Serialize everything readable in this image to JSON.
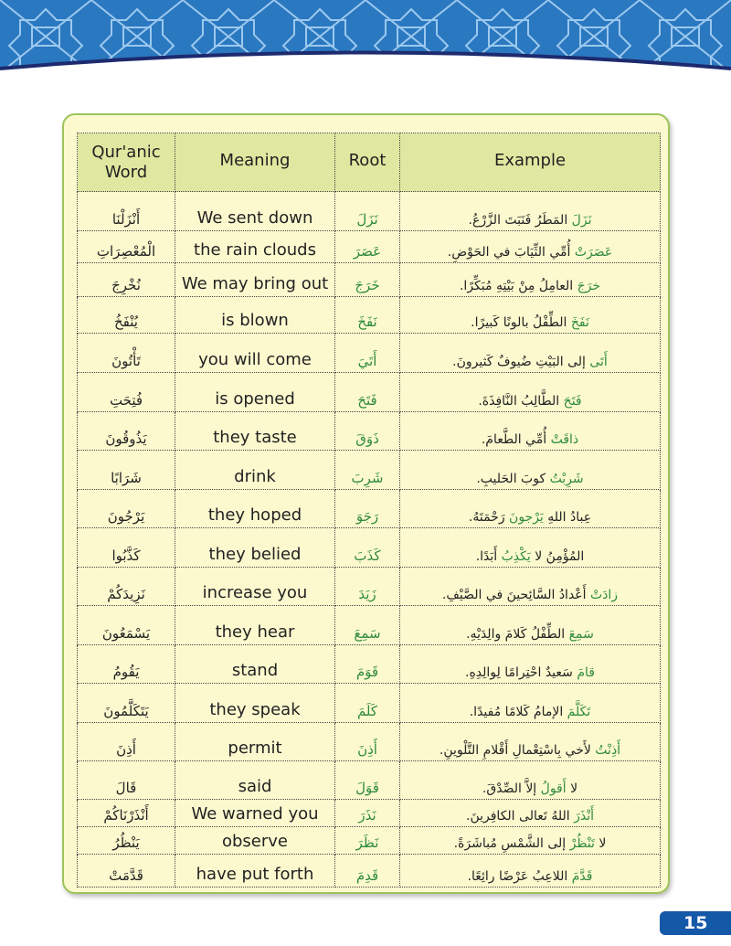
{
  "colors": {
    "banner": "#2a78c0",
    "banner_pattern": "#9cc8ee",
    "card_bg": "#fdf9cf",
    "header_bg": "#dfe8a0",
    "root_green": "#2e8b3a",
    "page_badge": "#1458a8"
  },
  "table": {
    "headers": [
      "Qur'anic Word",
      "Meaning",
      "Root",
      "Example"
    ],
    "rows": [
      {
        "word": "أَنْزَلْنَا",
        "meaning": "We sent down",
        "root": "نَزَلَ",
        "ex_hl": "نَزَلَ",
        "ex_rest": " المَطَرُ فَنَبَتَ الزَّرْعُ."
      },
      {
        "word": "الْمُعْصِرَاتِ",
        "meaning": "the rain clouds",
        "root": "عَصَرَ",
        "ex_hl": "عَصَرَتْ",
        "ex_rest": " أُمِّي الثِّيَابَ في الحَوْضِ."
      },
      {
        "word": "نُخْرِجَ",
        "meaning": "We may bring out",
        "root": "خَرَجَ",
        "ex_hl": "خرَجَ",
        "ex_rest": " العامِلُ مِنْ بَيْتِهِ مُبَكِّرًا."
      },
      {
        "word": "يُنْفَخُ",
        "meaning": "is blown",
        "root": "نَفَخَ",
        "ex_hl": "نَفَخَ",
        "ex_rest": " الطِّفْلُ بالونًا كَبيرًا."
      },
      {
        "word": "تَأْتُونَ",
        "meaning": "you will come",
        "root": "أَتَيَ",
        "ex_hl": "أَتَى",
        "ex_rest": " إلى البَيْتِ ضُيوفٌ كَثيرونَ."
      },
      {
        "word": "فُتِحَتِ",
        "meaning": "is opened",
        "root": "فَتَحَ",
        "ex_hl": "فَتَحَ",
        "ex_rest": " الطَّالِبُ النَّافِذَةَ."
      },
      {
        "word": "يَذُوقُونَ",
        "meaning": "they taste",
        "root": "ذَوَقَ",
        "ex_hl": "ذاقَتْ",
        "ex_rest": " أُمِّي الطَّعامَ."
      },
      {
        "word": "شَرَابًا",
        "meaning": "drink",
        "root": "شَرِبَ",
        "ex_hl": "شَرِبْتُ",
        "ex_rest": " كوبَ الحَليبِ."
      },
      {
        "word": "يَرْجُونَ",
        "meaning": "they hoped",
        "root": "رَجَوَ",
        "ex_pre": "عِبادُ اللهِ ",
        "ex_hl": "يَرْجونَ",
        "ex_rest": " رَحْمَتَهُ."
      },
      {
        "word": "كَذَّبُوا",
        "meaning": "they belied",
        "root": "كَذَبَ",
        "ex_pre": "المُؤْمِنُ لا ",
        "ex_hl": "يَكْذِبُ",
        "ex_rest": " أَبَدًا."
      },
      {
        "word": "نَزِيدَكُمْ",
        "meaning": "increase you",
        "root": "زَيَدَ",
        "ex_hl": "زادَتْ",
        "ex_rest": " أَعْدادُ السَّائِحينَ في الصَّيْفِ."
      },
      {
        "word": "يَسْمَعُونَ",
        "meaning": "they hear",
        "root": "سَمِعَ",
        "ex_hl": "سَمِعَ",
        "ex_rest": " الطِّفْلُ كَلامَ والِدَيْهِ."
      },
      {
        "word": "يَقُومُ",
        "meaning": "stand",
        "root": "قَوَمَ",
        "ex_hl": "قامَ",
        "ex_rest": " سَعيدٌ احْتِرامًا لِوالِدِهِ."
      },
      {
        "word": "يَتَكَلَّمُونَ",
        "meaning": "they speak",
        "root": "كَلَمَ",
        "ex_hl": "تَكَلَّمَ",
        "ex_rest": " الإمامُ كَلامًا مُفيدًا."
      },
      {
        "word": "أَذِنَ",
        "meaning": "permit",
        "root": "أَذِنَ",
        "ex_hl": "أَذِنْتُ",
        "ex_rest": " لأَخي بِاسْتِعْمالِ أَقْلامِ التَّلْوينِ."
      },
      {
        "word": "قَالَ",
        "meaning": "said",
        "root": "قَوَلَ",
        "ex_pre": "لا ",
        "ex_hl": "أَقولُ",
        "ex_rest": " إلاَّ الصِّدْقَ."
      },
      {
        "word": "أَنْذَرْنَاكُمْ",
        "meaning": "We warned you",
        "root": "نَذَرَ",
        "ex_hl": "أَنْذَرَ",
        "ex_rest": " اللهُ تَعالى الكافِرينَ."
      },
      {
        "word": "يَنْظُرُ",
        "meaning": "observe",
        "root": "نَظَرَ",
        "ex_pre": "لا ",
        "ex_hl": "تَنْظُرْ",
        "ex_rest": " إلى الشَّمْسِ مُباشَرَةً."
      },
      {
        "word": "قَدَّمَتْ",
        "meaning": "have put forth",
        "root": "قَدِمَ",
        "ex_hl": "قَدَّمَ",
        "ex_rest": " اللاعِبُ عَرْضًا رائِعًا."
      }
    ]
  },
  "page_number": "15"
}
